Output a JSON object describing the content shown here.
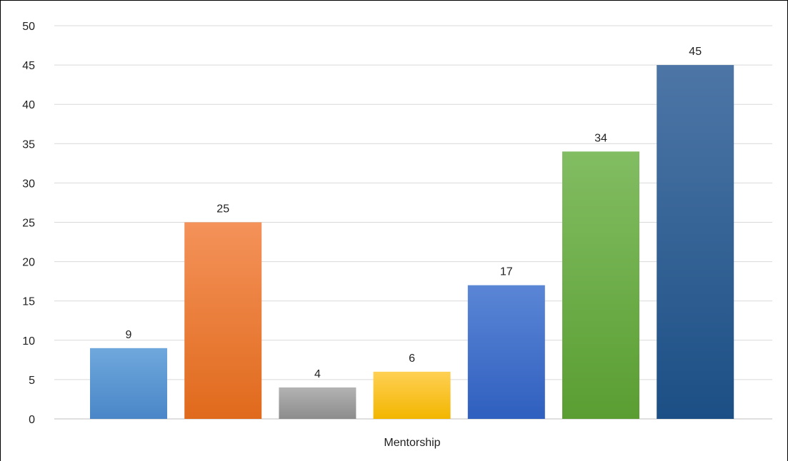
{
  "chart_data": {
    "type": "bar",
    "categories": [
      "Mentorship"
    ],
    "series": [
      {
        "values": [
          9
        ],
        "color_top": "#6fa8dc",
        "color_bottom": "#4a86c8"
      },
      {
        "values": [
          25
        ],
        "color_top": "#f4925a",
        "color_bottom": "#e06a1c"
      },
      {
        "values": [
          4
        ],
        "color_top": "#b3b3b3",
        "color_bottom": "#8c8c8c"
      },
      {
        "values": [
          6
        ],
        "color_top": "#ffd054",
        "color_bottom": "#f2b600"
      },
      {
        "values": [
          17
        ],
        "color_top": "#5b86d6",
        "color_bottom": "#2f5fbf"
      },
      {
        "values": [
          34
        ],
        "color_top": "#82bd62",
        "color_bottom": "#5a9e32"
      },
      {
        "values": [
          45
        ],
        "color_top": "#4d76a6",
        "color_bottom": "#1c4f85"
      }
    ],
    "title": "",
    "xlabel": "",
    "ylabel": "",
    "ylim": [
      0,
      50
    ],
    "y_ticks": [
      0,
      5,
      10,
      15,
      20,
      25,
      30,
      35,
      40,
      45,
      50
    ],
    "grid": true,
    "data_labels": true,
    "legend": "none"
  }
}
